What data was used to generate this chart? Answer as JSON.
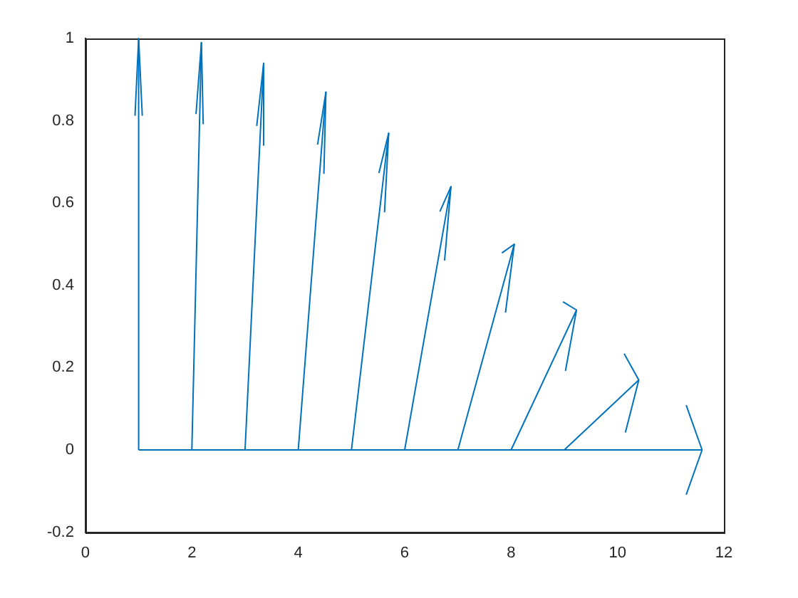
{
  "chart_data": {
    "type": "line",
    "xlim": [
      0,
      12
    ],
    "ylim": [
      -0.2,
      1
    ],
    "xticks": [
      0,
      2,
      4,
      6,
      8,
      10,
      12
    ],
    "yticks": [
      -0.2,
      0,
      0.2,
      0.4,
      0.6,
      0.8,
      1
    ],
    "grid": false,
    "legend": false,
    "marker": "none",
    "line_style": "solid",
    "series": [
      {
        "color": "#0072bd",
        "x": [
          1,
          1
        ],
        "values": [
          0,
          1
        ]
      },
      {
        "color": "#0072bd",
        "x": [
          2,
          2.18
        ],
        "values": [
          0,
          0.99
        ]
      },
      {
        "color": "#0072bd",
        "x": [
          3,
          3.35
        ],
        "values": [
          0,
          0.94
        ]
      },
      {
        "color": "#0072bd",
        "x": [
          4,
          4.52
        ],
        "values": [
          0,
          0.87
        ]
      },
      {
        "color": "#0072bd",
        "x": [
          5,
          5.7
        ],
        "values": [
          0,
          0.77
        ]
      },
      {
        "color": "#0072bd",
        "x": [
          6,
          6.87
        ],
        "values": [
          0,
          0.64
        ]
      },
      {
        "color": "#0072bd",
        "x": [
          7,
          8.06
        ],
        "values": [
          0,
          0.5
        ]
      },
      {
        "color": "#0072bd",
        "x": [
          8,
          9.23
        ],
        "values": [
          0,
          0.34
        ]
      },
      {
        "color": "#0072bd",
        "x": [
          9,
          10.4
        ],
        "values": [
          0,
          0.17
        ]
      },
      {
        "color": "#0072bd",
        "x": [
          1,
          10,
          11.59
        ],
        "values": [
          0,
          0,
          0
        ]
      }
    ]
  }
}
